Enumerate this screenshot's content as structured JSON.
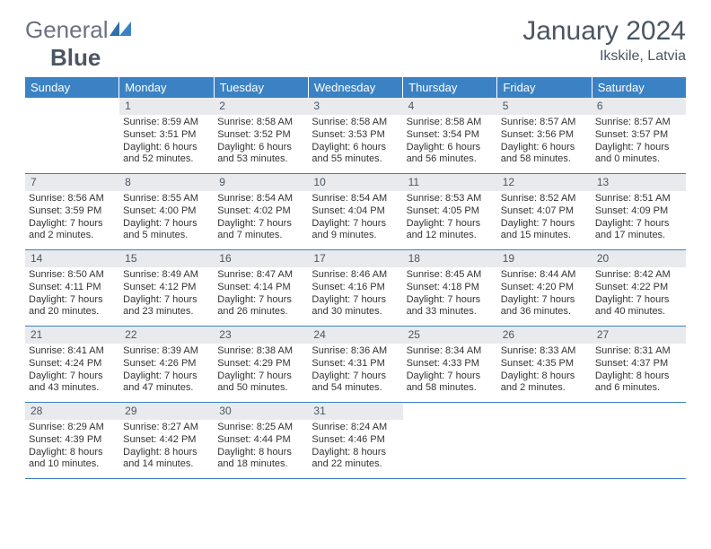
{
  "brand": {
    "word1": "General",
    "word2": "Blue"
  },
  "title": "January 2024",
  "location": "Ikskile, Latvia",
  "colors": {
    "header_bg": "#3b82c4",
    "header_text": "#ffffff",
    "daynum_bg": "#e8eaed",
    "rule": "#3b82c4",
    "body_text": "#333333",
    "title_text": "#4b5563"
  },
  "day_names": [
    "Sunday",
    "Monday",
    "Tuesday",
    "Wednesday",
    "Thursday",
    "Friday",
    "Saturday"
  ],
  "weeks": [
    [
      null,
      {
        "n": "1",
        "sr": "8:59 AM",
        "ss": "3:51 PM",
        "dl": "6 hours and 52 minutes."
      },
      {
        "n": "2",
        "sr": "8:58 AM",
        "ss": "3:52 PM",
        "dl": "6 hours and 53 minutes."
      },
      {
        "n": "3",
        "sr": "8:58 AM",
        "ss": "3:53 PM",
        "dl": "6 hours and 55 minutes."
      },
      {
        "n": "4",
        "sr": "8:58 AM",
        "ss": "3:54 PM",
        "dl": "6 hours and 56 minutes."
      },
      {
        "n": "5",
        "sr": "8:57 AM",
        "ss": "3:56 PM",
        "dl": "6 hours and 58 minutes."
      },
      {
        "n": "6",
        "sr": "8:57 AM",
        "ss": "3:57 PM",
        "dl": "7 hours and 0 minutes."
      }
    ],
    [
      {
        "n": "7",
        "sr": "8:56 AM",
        "ss": "3:59 PM",
        "dl": "7 hours and 2 minutes."
      },
      {
        "n": "8",
        "sr": "8:55 AM",
        "ss": "4:00 PM",
        "dl": "7 hours and 5 minutes."
      },
      {
        "n": "9",
        "sr": "8:54 AM",
        "ss": "4:02 PM",
        "dl": "7 hours and 7 minutes."
      },
      {
        "n": "10",
        "sr": "8:54 AM",
        "ss": "4:04 PM",
        "dl": "7 hours and 9 minutes."
      },
      {
        "n": "11",
        "sr": "8:53 AM",
        "ss": "4:05 PM",
        "dl": "7 hours and 12 minutes."
      },
      {
        "n": "12",
        "sr": "8:52 AM",
        "ss": "4:07 PM",
        "dl": "7 hours and 15 minutes."
      },
      {
        "n": "13",
        "sr": "8:51 AM",
        "ss": "4:09 PM",
        "dl": "7 hours and 17 minutes."
      }
    ],
    [
      {
        "n": "14",
        "sr": "8:50 AM",
        "ss": "4:11 PM",
        "dl": "7 hours and 20 minutes."
      },
      {
        "n": "15",
        "sr": "8:49 AM",
        "ss": "4:12 PM",
        "dl": "7 hours and 23 minutes."
      },
      {
        "n": "16",
        "sr": "8:47 AM",
        "ss": "4:14 PM",
        "dl": "7 hours and 26 minutes."
      },
      {
        "n": "17",
        "sr": "8:46 AM",
        "ss": "4:16 PM",
        "dl": "7 hours and 30 minutes."
      },
      {
        "n": "18",
        "sr": "8:45 AM",
        "ss": "4:18 PM",
        "dl": "7 hours and 33 minutes."
      },
      {
        "n": "19",
        "sr": "8:44 AM",
        "ss": "4:20 PM",
        "dl": "7 hours and 36 minutes."
      },
      {
        "n": "20",
        "sr": "8:42 AM",
        "ss": "4:22 PM",
        "dl": "7 hours and 40 minutes."
      }
    ],
    [
      {
        "n": "21",
        "sr": "8:41 AM",
        "ss": "4:24 PM",
        "dl": "7 hours and 43 minutes."
      },
      {
        "n": "22",
        "sr": "8:39 AM",
        "ss": "4:26 PM",
        "dl": "7 hours and 47 minutes."
      },
      {
        "n": "23",
        "sr": "8:38 AM",
        "ss": "4:29 PM",
        "dl": "7 hours and 50 minutes."
      },
      {
        "n": "24",
        "sr": "8:36 AM",
        "ss": "4:31 PM",
        "dl": "7 hours and 54 minutes."
      },
      {
        "n": "25",
        "sr": "8:34 AM",
        "ss": "4:33 PM",
        "dl": "7 hours and 58 minutes."
      },
      {
        "n": "26",
        "sr": "8:33 AM",
        "ss": "4:35 PM",
        "dl": "8 hours and 2 minutes."
      },
      {
        "n": "27",
        "sr": "8:31 AM",
        "ss": "4:37 PM",
        "dl": "8 hours and 6 minutes."
      }
    ],
    [
      {
        "n": "28",
        "sr": "8:29 AM",
        "ss": "4:39 PM",
        "dl": "8 hours and 10 minutes."
      },
      {
        "n": "29",
        "sr": "8:27 AM",
        "ss": "4:42 PM",
        "dl": "8 hours and 14 minutes."
      },
      {
        "n": "30",
        "sr": "8:25 AM",
        "ss": "4:44 PM",
        "dl": "8 hours and 18 minutes."
      },
      {
        "n": "31",
        "sr": "8:24 AM",
        "ss": "4:46 PM",
        "dl": "8 hours and 22 minutes."
      },
      null,
      null,
      null
    ]
  ],
  "labels": {
    "sunrise": "Sunrise:",
    "sunset": "Sunset:",
    "daylight": "Daylight:"
  }
}
